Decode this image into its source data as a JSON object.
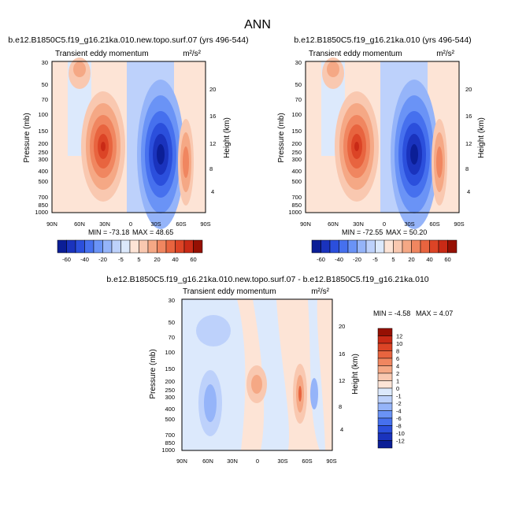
{
  "page_title": "ANN",
  "colors": {
    "neg": [
      "#0b1e96",
      "#1a33bd",
      "#2b4fdc",
      "#4670ee",
      "#6a93f6",
      "#95b4f9",
      "#bdd1fb",
      "#dce9fc"
    ],
    "pos": [
      "#fde4d6",
      "#f9c8b0",
      "#f5a885",
      "#f08660",
      "#e8643f",
      "#dc4426",
      "#c92a16",
      "#961003"
    ]
  },
  "chart_data": [
    {
      "type": "contour",
      "title": "b.e12.B1850C5.f19_g16.21ka.010.new.topo.surf.07 (yrs 496-544)",
      "subtitle": "Transient eddy momentum",
      "units": "m²/s²",
      "ylabel": "Pressure (mb)",
      "ylabel_right": "Height (km)",
      "x_ticks": [
        "90N",
        "60N",
        "30N",
        "0",
        "30S",
        "60S",
        "90S"
      ],
      "y_ticks": [
        "30",
        "50",
        "70",
        "100",
        "150",
        "200",
        "250",
        "300",
        "400",
        "500",
        "700",
        "850",
        "1000"
      ],
      "y_right_ticks": [
        "20",
        "16",
        "12",
        "8",
        "4"
      ],
      "min_label": "MIN = -73.18",
      "max_label": "MAX =  48.65",
      "features": [
        {
          "lat": 30,
          "p": 220,
          "value": 48.65
        },
        {
          "lat": -35,
          "p": 230,
          "value": -73.18
        },
        {
          "lat": -62,
          "p": 300,
          "value": 25
        },
        {
          "lat": 60,
          "p": 40,
          "value": 10
        }
      ]
    },
    {
      "type": "contour",
      "title": "b.e12.B1850C5.f19_g16.21ka.010 (yrs 496-544)",
      "subtitle": "Transient eddy momentum",
      "units": "m²/s²",
      "ylabel": "Pressure (mb)",
      "ylabel_right": "Height (km)",
      "x_ticks": [
        "90N",
        "60N",
        "30N",
        "0",
        "30S",
        "60S",
        "90S"
      ],
      "y_ticks": [
        "30",
        "50",
        "70",
        "100",
        "150",
        "200",
        "250",
        "300",
        "400",
        "500",
        "700",
        "850",
        "1000"
      ],
      "y_right_ticks": [
        "20",
        "16",
        "12",
        "8",
        "4"
      ],
      "min_label": "MIN = -72.55",
      "max_label": "MAX =  50.20",
      "features": [
        {
          "lat": 30,
          "p": 220,
          "value": 50.2
        },
        {
          "lat": -35,
          "p": 230,
          "value": -72.55
        },
        {
          "lat": -62,
          "p": 300,
          "value": 25
        },
        {
          "lat": 60,
          "p": 40,
          "value": 10
        }
      ]
    },
    {
      "type": "contour",
      "title": "b.e12.B1850C5.f19_g16.21ka.010.new.topo.surf.07 - b.e12.B1850C5.f19_g16.21ka.010",
      "subtitle": "Transient eddy momentum",
      "units": "m²/s²",
      "ylabel": "Pressure (mb)",
      "ylabel_right": "Height (km)",
      "x_ticks": [
        "90N",
        "60N",
        "30N",
        "0",
        "30S",
        "60S",
        "90S"
      ],
      "y_ticks": [
        "30",
        "50",
        "70",
        "100",
        "150",
        "200",
        "250",
        "300",
        "400",
        "500",
        "700",
        "850",
        "1000"
      ],
      "y_right_ticks": [
        "20",
        "16",
        "12",
        "8",
        "4"
      ],
      "min_label": "MIN = -4.58",
      "max_label": "MAX =  4.07",
      "features": [
        {
          "lat": 0,
          "p": 200,
          "value": 3
        },
        {
          "lat": -55,
          "p": 280,
          "value": 4.07
        },
        {
          "lat": -65,
          "p": 300,
          "value": -2
        },
        {
          "lat": 55,
          "p": 350,
          "value": -4.58
        }
      ]
    }
  ],
  "colorbar_main": {
    "labels": [
      "-60",
      "-40",
      "-20",
      "-5",
      "5",
      "20",
      "40",
      "60"
    ]
  },
  "colorbar_diff": {
    "labels": [
      "12",
      "10",
      "8",
      "6",
      "4",
      "2",
      "1",
      "0",
      "-1",
      "-2",
      "-4",
      "-6",
      "-8",
      "-10",
      "-12"
    ]
  }
}
